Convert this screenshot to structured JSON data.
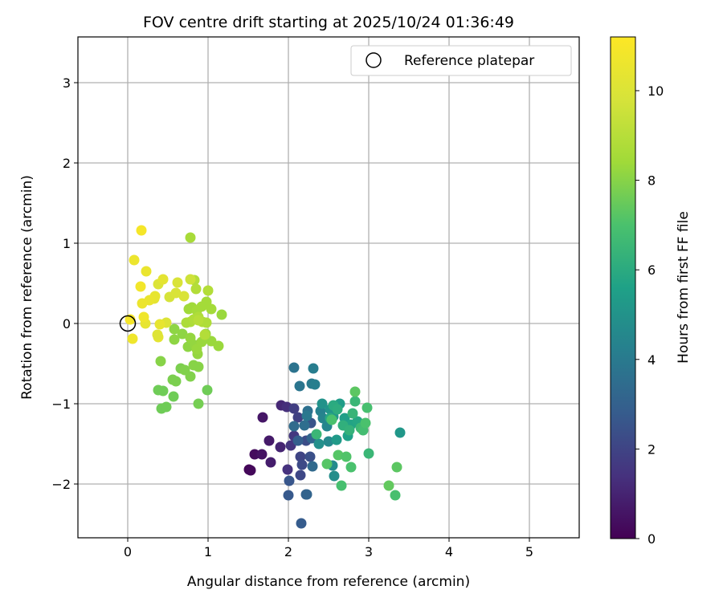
{
  "chart_data": {
    "type": "scatter",
    "title": "FOV centre drift starting at 2025/10/24 01:36:49",
    "xlabel": "Angular distance from reference (arcmin)",
    "ylabel": "Rotation from reference (arcmin)",
    "xlim": [
      -0.62,
      5.62
    ],
    "ylim": [
      -2.67,
      3.57
    ],
    "xticks": [
      "0",
      "1",
      "2",
      "3",
      "4",
      "5"
    ],
    "yticks": [
      "−2",
      "−1",
      "0",
      "1",
      "2",
      "3"
    ],
    "grid": true,
    "legend": {
      "position": "top-right",
      "entries": [
        "Reference platepar"
      ]
    },
    "colorbar": {
      "label": "Hours from first FF file",
      "colormap": "viridis",
      "range": [
        0,
        11.2
      ],
      "ticks": [
        "0",
        "2",
        "4",
        "6",
        "8",
        "10"
      ]
    },
    "reference_point": {
      "x": 0,
      "y": 0
    },
    "points": [
      [
        1.51,
        -1.82,
        0.1
      ],
      [
        1.53,
        -1.83,
        0.2
      ],
      [
        1.58,
        -1.63,
        0.3
      ],
      [
        1.67,
        -1.63,
        0.5
      ],
      [
        1.68,
        -1.17,
        0.6
      ],
      [
        1.76,
        -1.46,
        0.7
      ],
      [
        1.78,
        -1.73,
        0.8
      ],
      [
        1.9,
        -1.54,
        1.0
      ],
      [
        1.91,
        -1.02,
        1.1
      ],
      [
        1.98,
        -1.04,
        1.3
      ],
      [
        1.99,
        -1.82,
        1.4
      ],
      [
        2.03,
        -1.52,
        1.5
      ],
      [
        2.07,
        -1.4,
        1.6
      ],
      [
        2.07,
        -1.06,
        1.8
      ],
      [
        2.12,
        -1.17,
        1.9
      ],
      [
        2.15,
        -1.66,
        2.0
      ],
      [
        2.15,
        -1.89,
        2.1
      ],
      [
        2.17,
        -1.76,
        2.2
      ],
      [
        2.22,
        -1.46,
        2.3
      ],
      [
        2.27,
        -1.66,
        2.4
      ],
      [
        2.28,
        -1.24,
        2.5
      ],
      [
        2.01,
        -1.96,
        2.6
      ],
      [
        2.0,
        -2.14,
        2.7
      ],
      [
        2.16,
        -2.49,
        2.8
      ],
      [
        2.12,
        -1.46,
        2.9
      ],
      [
        2.22,
        -2.13,
        3.0
      ],
      [
        2.23,
        -2.13,
        3.1
      ],
      [
        2.29,
        -1.43,
        3.2
      ],
      [
        2.3,
        -1.78,
        3.3
      ],
      [
        2.07,
        -1.28,
        3.4
      ],
      [
        2.2,
        -1.27,
        3.5
      ],
      [
        2.24,
        -1.09,
        3.6
      ],
      [
        2.07,
        -0.55,
        3.7
      ],
      [
        2.14,
        -0.78,
        3.8
      ],
      [
        2.23,
        -1.15,
        3.9
      ],
      [
        2.29,
        -0.75,
        4.0
      ],
      [
        2.31,
        -0.56,
        4.1
      ],
      [
        2.33,
        -0.76,
        4.2
      ],
      [
        2.4,
        -1.09,
        4.3
      ],
      [
        2.43,
        -1.18,
        4.4
      ],
      [
        2.48,
        -1.28,
        4.5
      ],
      [
        2.5,
        -1.47,
        4.6
      ],
      [
        2.55,
        -1.77,
        4.7
      ],
      [
        2.57,
        -1.9,
        4.8
      ],
      [
        2.38,
        -1.5,
        4.9
      ],
      [
        2.42,
        -1.0,
        5.0
      ],
      [
        2.52,
        -1.07,
        5.1
      ],
      [
        2.56,
        -1.16,
        5.2
      ],
      [
        2.6,
        -1.45,
        5.3
      ],
      [
        2.64,
        -1.0,
        5.4
      ],
      [
        2.7,
        -1.18,
        5.5
      ],
      [
        2.74,
        -1.4,
        5.6
      ],
      [
        2.78,
        -1.26,
        5.7
      ],
      [
        2.86,
        -1.22,
        5.8
      ],
      [
        2.52,
        -1.18,
        5.9
      ],
      [
        2.56,
        -1.02,
        6.0
      ],
      [
        2.61,
        -1.07,
        6.1
      ],
      [
        2.68,
        -1.27,
        6.2
      ],
      [
        2.76,
        -1.33,
        6.3
      ],
      [
        2.8,
        -1.12,
        6.4
      ],
      [
        2.83,
        -0.97,
        6.5
      ],
      [
        2.9,
        -1.3,
        6.6
      ],
      [
        3.39,
        -1.36,
        5.2
      ],
      [
        2.35,
        -1.38,
        6.5
      ],
      [
        2.98,
        -1.05,
        6.9
      ],
      [
        2.54,
        -1.2,
        7.0
      ],
      [
        2.48,
        -1.75,
        7.2
      ],
      [
        2.62,
        -1.64,
        7.2
      ],
      [
        2.72,
        -1.66,
        7.1
      ],
      [
        2.78,
        -1.79,
        7.0
      ],
      [
        2.66,
        -2.02,
        6.9
      ],
      [
        2.93,
        -1.33,
        6.8
      ],
      [
        3.0,
        -1.62,
        6.5
      ],
      [
        3.25,
        -2.02,
        7.4
      ],
      [
        3.35,
        -1.79,
        7.3
      ],
      [
        3.33,
        -2.14,
        6.9
      ],
      [
        2.96,
        -1.24,
        7.0
      ],
      [
        2.83,
        -0.85,
        7.3
      ],
      [
        0.38,
        -0.83,
        7.6
      ],
      [
        0.44,
        -0.84,
        7.6
      ],
      [
        0.42,
        -1.06,
        7.6
      ],
      [
        0.48,
        -1.04,
        7.6
      ],
      [
        0.57,
        -0.91,
        7.6
      ],
      [
        0.99,
        -0.83,
        7.6
      ],
      [
        0.88,
        -1.0,
        7.7
      ],
      [
        0.56,
        -0.7,
        7.8
      ],
      [
        0.6,
        -0.72,
        7.8
      ],
      [
        0.66,
        -0.56,
        7.8
      ],
      [
        0.71,
        -0.58,
        7.9
      ],
      [
        0.78,
        -0.66,
        7.9
      ],
      [
        0.82,
        -0.52,
        8.0
      ],
      [
        0.88,
        -0.54,
        8.0
      ],
      [
        0.41,
        -0.47,
        8.0
      ],
      [
        0.58,
        -0.2,
        8.1
      ],
      [
        0.58,
        -0.07,
        8.1
      ],
      [
        0.68,
        -0.13,
        8.1
      ],
      [
        0.75,
        -0.29,
        8.1
      ],
      [
        0.78,
        -0.18,
        8.2
      ],
      [
        0.84,
        -0.27,
        8.2
      ],
      [
        0.87,
        -0.38,
        8.2
      ],
      [
        0.86,
        -0.32,
        8.3
      ],
      [
        0.92,
        -0.23,
        8.3
      ],
      [
        0.97,
        -0.13,
        8.3
      ],
      [
        1.04,
        -0.22,
        8.3
      ],
      [
        1.13,
        -0.28,
        8.3
      ],
      [
        0.76,
        0.18,
        8.4
      ],
      [
        0.8,
        0.2,
        8.4
      ],
      [
        0.86,
        0.16,
        8.5
      ],
      [
        0.92,
        0.21,
        8.5
      ],
      [
        0.98,
        0.27,
        8.5
      ],
      [
        1.04,
        0.18,
        8.5
      ],
      [
        1.17,
        0.11,
        8.3
      ],
      [
        0.73,
        0.01,
        8.7
      ],
      [
        0.78,
        0.02,
        8.7
      ],
      [
        0.82,
        0.05,
        8.8
      ],
      [
        0.88,
        0.08,
        8.8
      ],
      [
        0.93,
        0.02,
        8.8
      ],
      [
        0.98,
        0.01,
        8.8
      ],
      [
        1.0,
        0.41,
        8.9
      ],
      [
        0.85,
        0.43,
        8.9
      ],
      [
        0.83,
        0.54,
        8.9
      ],
      [
        0.78,
        1.07,
        8.6
      ],
      [
        0.96,
        -0.14,
        8.9
      ],
      [
        0.88,
        0.04,
        9.0
      ],
      [
        0.78,
        0.55,
        9.6
      ],
      [
        0.52,
        0.33,
        9.8
      ],
      [
        0.6,
        0.38,
        9.9
      ],
      [
        0.62,
        0.51,
        9.9
      ],
      [
        0.7,
        0.34,
        9.9
      ],
      [
        0.38,
        0.49,
        10.0
      ],
      [
        0.44,
        0.55,
        10.3
      ],
      [
        0.48,
        0.01,
        10.0
      ],
      [
        0.4,
        -0.01,
        10.4
      ],
      [
        0.38,
        -0.17,
        10.3
      ],
      [
        0.37,
        -0.14,
        10.1
      ],
      [
        0.33,
        0.31,
        10.3
      ],
      [
        0.34,
        0.34,
        10.4
      ],
      [
        0.27,
        0.29,
        10.5
      ],
      [
        0.22,
        0.0,
        10.4
      ],
      [
        0.18,
        0.25,
        10.6
      ],
      [
        0.2,
        0.08,
        10.7
      ],
      [
        0.23,
        0.65,
        10.5
      ],
      [
        0.08,
        0.79,
        10.6
      ],
      [
        0.16,
        0.46,
        10.8
      ],
      [
        0.17,
        1.16,
        10.9
      ],
      [
        0.03,
        0.05,
        10.9
      ],
      [
        0.06,
        -0.19,
        10.7
      ]
    ]
  }
}
